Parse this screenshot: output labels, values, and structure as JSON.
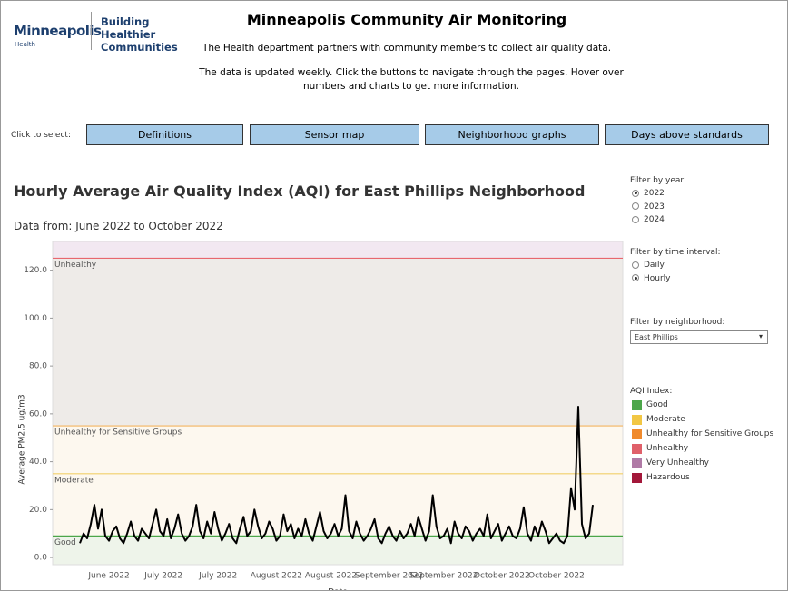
{
  "header": {
    "logo": "Minneapolis",
    "logo_sub": "Health",
    "tagline": "Building Healthier Communities",
    "title": "Minneapolis Community Air Monitoring",
    "intro": "The Health department partners with community members to collect air quality data.",
    "note": "The data is updated weekly. Click the buttons to navigate through the pages. Hover over numbers and charts to get more information."
  },
  "nav": {
    "label": "Click to select:",
    "buttons": [
      "Definitions",
      "Sensor map",
      "Neighborhood graphs",
      "Days above standards"
    ]
  },
  "filters": {
    "year": {
      "label": "Filter by year:",
      "options": [
        {
          "label": "2022",
          "checked": true
        },
        {
          "label": "2023",
          "checked": false
        },
        {
          "label": "2024",
          "checked": false
        }
      ]
    },
    "interval": {
      "label": "Filter by time interval:",
      "options": [
        {
          "label": "Daily",
          "checked": false
        },
        {
          "label": "Hourly",
          "checked": true
        }
      ]
    },
    "neighborhood": {
      "label": "Filter by neighborhood:",
      "selected": "East Phillips"
    }
  },
  "aqi_legend": {
    "title": "AQI Index:",
    "items": [
      {
        "name": "Good",
        "color": "#4ca64a"
      },
      {
        "name": "Moderate",
        "color": "#f2c744"
      },
      {
        "name": "Unhealthy for Sensitive Groups",
        "color": "#f08a2c"
      },
      {
        "name": "Unhealthy",
        "color": "#e0606a"
      },
      {
        "name": "Very Unhealthy",
        "color": "#b07aa6"
      },
      {
        "name": "Hazardous",
        "color": "#a3173a"
      }
    ]
  },
  "chart_data": {
    "type": "line",
    "title": "Hourly Average Air Quality Index (AQI) for East Phillips Neighborhood",
    "subtitle": "Data from: June 2022 to October 2022",
    "y_label": "Average PM2.5 ug/m3",
    "x_label": "Date",
    "ylim": [
      -3,
      132
    ],
    "yticks": [
      {
        "value": 0,
        "label": "0.0"
      },
      {
        "value": 20,
        "label": "20.0"
      },
      {
        "value": 40,
        "label": "40.0"
      },
      {
        "value": 60,
        "label": "60.0"
      },
      {
        "value": 80,
        "label": "80.0"
      },
      {
        "value": 100,
        "label": "100.0"
      },
      {
        "value": 120,
        "label": "120.0"
      }
    ],
    "thresholds": [
      {
        "name": "Good",
        "value": 9,
        "color": "#4ca64a",
        "fill": "#eef4ea"
      },
      {
        "name": "Moderate",
        "value": 35,
        "color": "#f2cf6a",
        "fill": "#fdf8ef"
      },
      {
        "name": "Unhealthy for Sensitive Groups",
        "value": 55,
        "color": "#f4b562",
        "fill": "#fdf8ef"
      },
      {
        "name": "Unhealthy",
        "value": 125,
        "color": "#e8676f",
        "fill": "#eeebe8"
      }
    ],
    "top_fill": "#f2e8f1",
    "categories": [
      null,
      null,
      null,
      null,
      null,
      null,
      null,
      null,
      "June 2022",
      null,
      null,
      null,
      null,
      null,
      null,
      null,
      null,
      null,
      null,
      null,
      null,
      null,
      null,
      "July 2022",
      null,
      null,
      null,
      null,
      null,
      null,
      null,
      null,
      null,
      null,
      null,
      null,
      null,
      null,
      "July 2022",
      null,
      null,
      null,
      null,
      null,
      null,
      null,
      null,
      null,
      null,
      null,
      null,
      null,
      null,
      null,
      "August 2022",
      null,
      null,
      null,
      null,
      null,
      null,
      null,
      null,
      null,
      null,
      null,
      null,
      null,
      null,
      "August 2022",
      null,
      null,
      null,
      null,
      null,
      null,
      null,
      null,
      null,
      null,
      null,
      null,
      null,
      null,
      null,
      "September 2022",
      null,
      null,
      null,
      null,
      null,
      null,
      null,
      null,
      null,
      null,
      null,
      null,
      null,
      null,
      "September 2022",
      null,
      null,
      null,
      null,
      null,
      null,
      null,
      null,
      null,
      null,
      null,
      null,
      null,
      null,
      null,
      "October 2022",
      null,
      null,
      null,
      null,
      null,
      null,
      null,
      null,
      null,
      null,
      null,
      null,
      null,
      null,
      "October 2022",
      null,
      null,
      null,
      null,
      null,
      null,
      null,
      null,
      null,
      null
    ],
    "series": [
      {
        "name": "PM2.5",
        "color": "#000000",
        "values": [
          6,
          10,
          8,
          14,
          22,
          12,
          20,
          9,
          7,
          11,
          13,
          8,
          6,
          10,
          15,
          9,
          7,
          12,
          10,
          8,
          14,
          20,
          11,
          9,
          16,
          8,
          12,
          18,
          10,
          7,
          9,
          13,
          22,
          11,
          8,
          15,
          10,
          19,
          12,
          7,
          10,
          14,
          8,
          6,
          12,
          17,
          9,
          11,
          20,
          13,
          8,
          10,
          15,
          12,
          7,
          9,
          18,
          11,
          14,
          8,
          12,
          9,
          16,
          10,
          7,
          13,
          19,
          11,
          8,
          10,
          14,
          9,
          12,
          26,
          11,
          8,
          15,
          10,
          7,
          9,
          12,
          16,
          8,
          6,
          10,
          13,
          9,
          7,
          11,
          8,
          10,
          14,
          9,
          17,
          12,
          7,
          11,
          26,
          13,
          8,
          9,
          12,
          6,
          15,
          10,
          8,
          13,
          11,
          7,
          10,
          12,
          9,
          18,
          8,
          11,
          14,
          7,
          10,
          13,
          9,
          8,
          12,
          21,
          10,
          7,
          13,
          9,
          15,
          11,
          6,
          8,
          10,
          7,
          6,
          9,
          29,
          20,
          63,
          14,
          8,
          10,
          22
        ]
      }
    ]
  }
}
